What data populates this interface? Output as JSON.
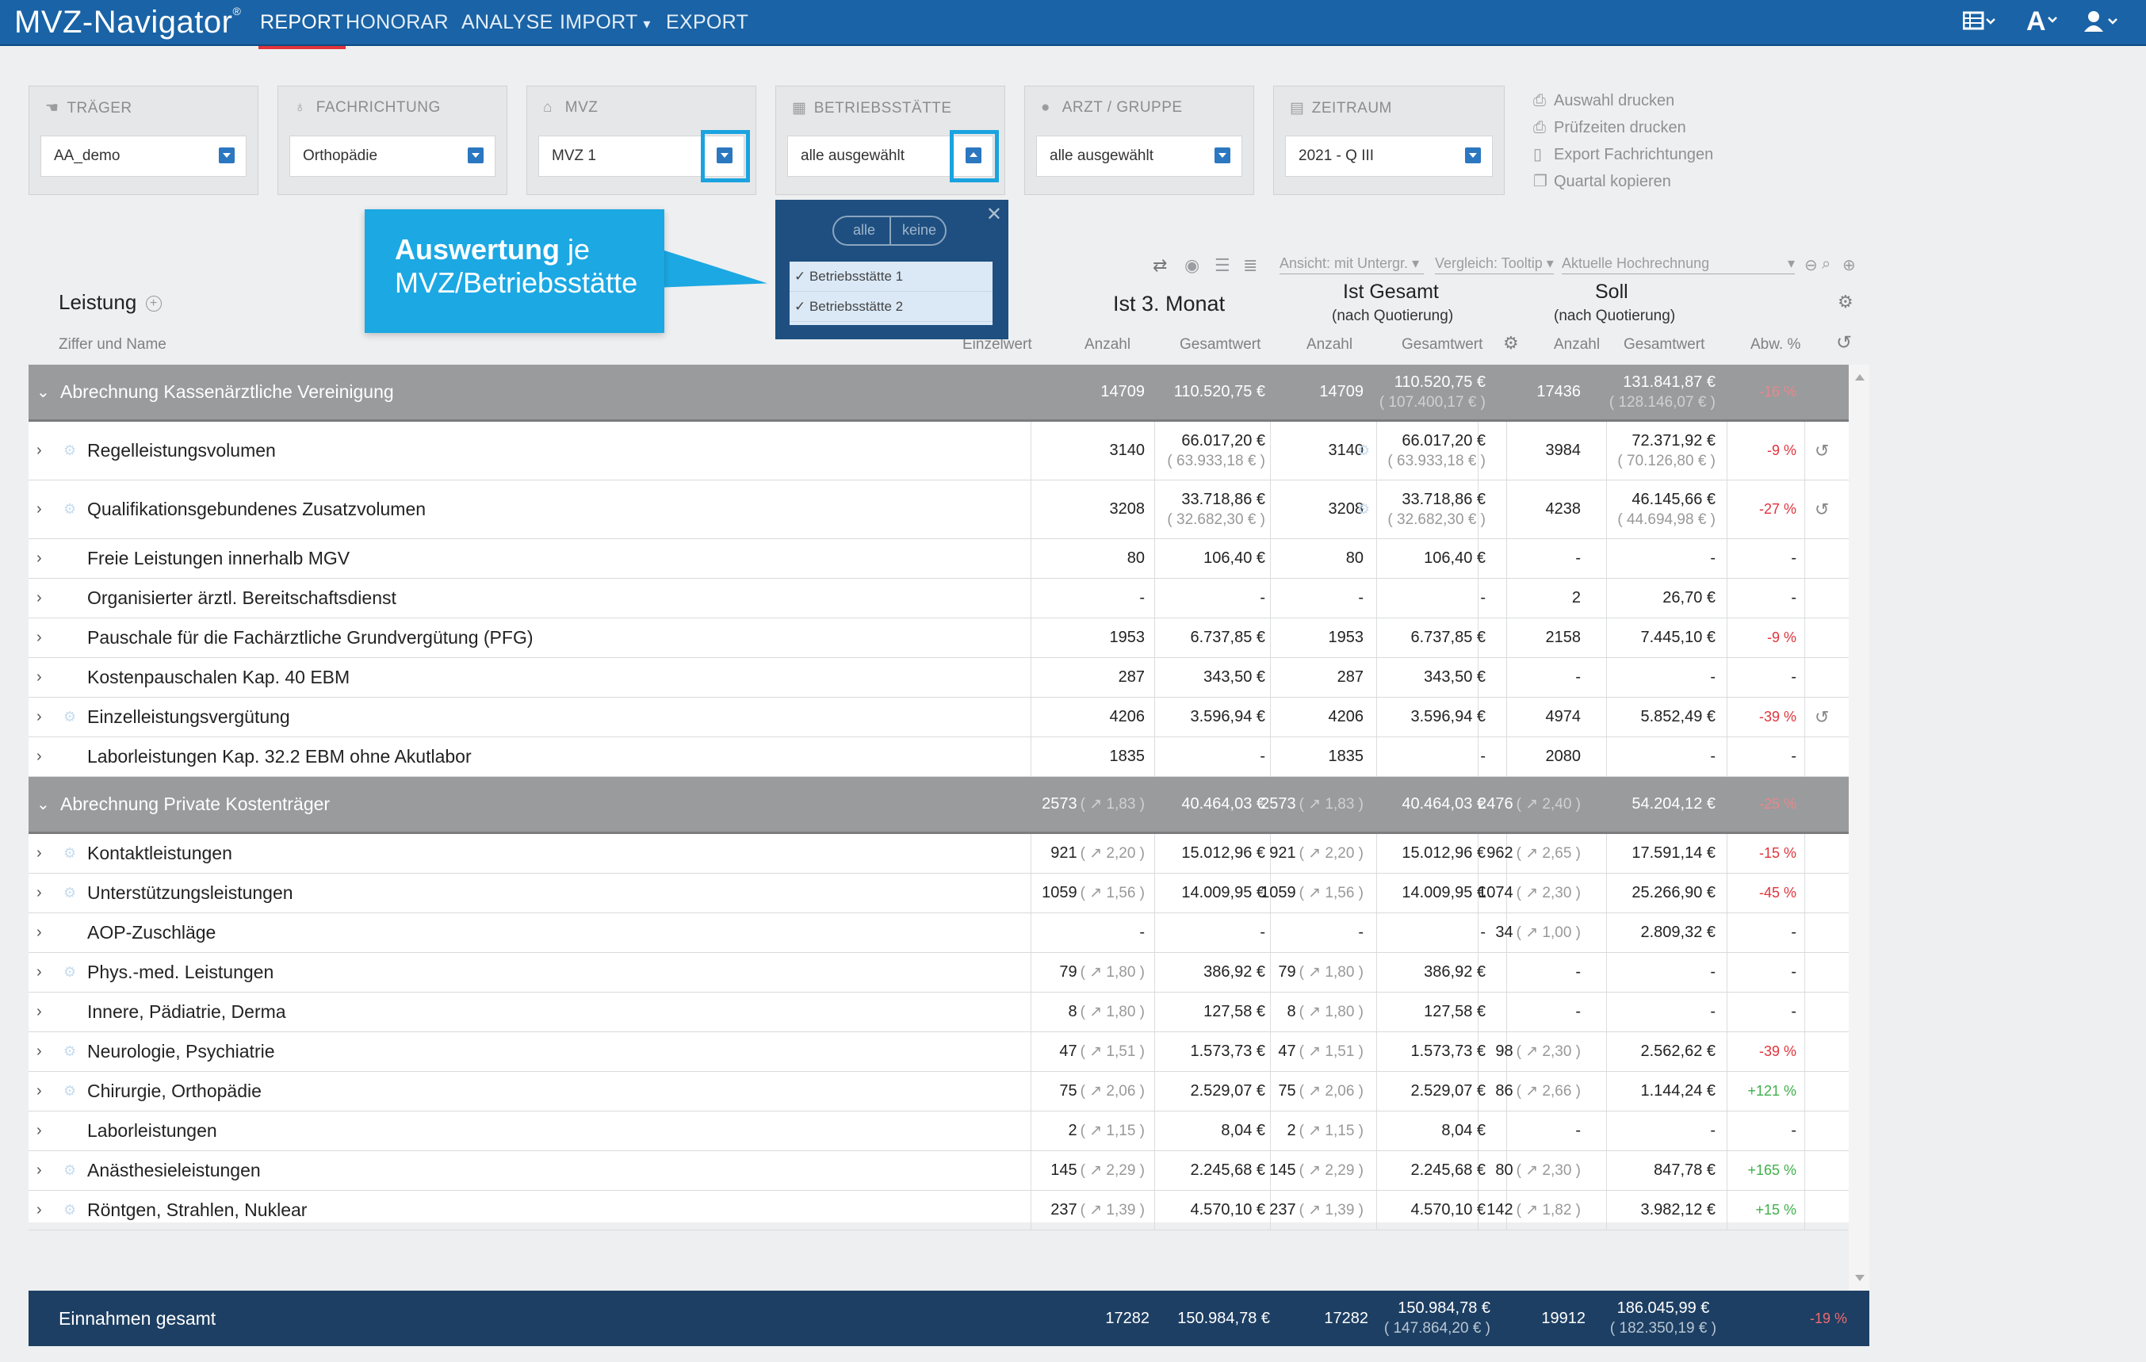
{
  "nav": {
    "logo": "MVZ-Navigator",
    "logo_mark": "®",
    "items": [
      "REPORT",
      "HONORAR",
      "ANALYSE",
      "IMPORT",
      "EXPORT"
    ],
    "import_caret": "⌄",
    "right_icons": [
      "table-icon",
      "font-size-icon",
      "user-icon"
    ]
  },
  "filters": [
    {
      "title": "TRÄGER",
      "value": "AA_demo",
      "icon": "handshake-icon"
    },
    {
      "title": "FACHRICHTUNG",
      "value": "Orthopädie",
      "icon": "stethoscope-icon"
    },
    {
      "title": "MVZ",
      "value": "MVZ 1",
      "icon": "building-icon"
    },
    {
      "title": "BETRIEBSSTÄTTE",
      "value": "alle ausgewählt",
      "icon": "office-icon"
    },
    {
      "title": "ARZT / GRUPPE",
      "value": "alle ausgewählt",
      "icon": "person-icon"
    },
    {
      "title": "ZEITRAUM",
      "value": "2021 - Q III",
      "icon": "calendar-icon"
    }
  ],
  "actions": [
    "Auswahl drucken",
    "Prüfzeiten drucken",
    "Export Fachrichtungen",
    "Quartal kopieren"
  ],
  "callout": {
    "bold": "Auswertung",
    "rest": " je",
    "line2": "MVZ/Betriebsstätte"
  },
  "dropdown": {
    "toggle_all": "alle",
    "toggle_none": "keine",
    "items": [
      "Betriebsstätte 1",
      "Betriebsstätte 2"
    ]
  },
  "toolbar": {
    "view": "Ansicht: mit Untergr.",
    "compare": "Vergleich: Tooltip",
    "projection": "Aktuelle Hochrechnung"
  },
  "header": {
    "leistung": "Leistung",
    "ziffer": "Ziffer und Name",
    "einzelwert": "Einzelwert",
    "ist3": "Ist 3. Monat",
    "istg": "Ist Gesamt",
    "istg_sub": "(nach Quotierung)",
    "soll": "Soll",
    "soll_sub": "(nach Quotierung)",
    "anzahl": "Anzahl",
    "gesamtwert": "Gesamtwert",
    "abw": "Abw. %"
  },
  "rows": [
    {
      "type": "group",
      "name": "Abrechnung Kassenärztliche Vereinigung",
      "a1": "14709",
      "g1": "110.520,75 €",
      "a2": "14709",
      "g2": "110.520,75 €",
      "g2s": "( 107.400,17 € )",
      "a3": "17436",
      "g3": "131.841,87 €",
      "g3s": "( 128.146,07 € )",
      "abw": "-16 %"
    },
    {
      "type": "item",
      "gear": true,
      "name": "Regelleistungsvolumen",
      "a1": "3140",
      "g1": "66.017,20 €",
      "g1s": "( 63.933,18 € )",
      "a2": "3140",
      "g2": "66.017,20 €",
      "g2s": "( 63.933,18 € )",
      "a3": "3984",
      "g3": "72.371,92 €",
      "g3s": "( 70.126,80 € )",
      "abw": "-9 %",
      "hist": true,
      "tall": true,
      "gear2": true
    },
    {
      "type": "item",
      "gear": true,
      "name": "Qualifikationsgebundenes Zusatzvolumen",
      "a1": "3208",
      "g1": "33.718,86 €",
      "g1s": "( 32.682,30 € )",
      "a2": "3208",
      "g2": "33.718,86 €",
      "g2s": "( 32.682,30 € )",
      "a3": "4238",
      "g3": "46.145,66 €",
      "g3s": "( 44.694,98 € )",
      "abw": "-27 %",
      "hist": true,
      "tall": true,
      "gear2": true
    },
    {
      "type": "item",
      "name": "Freie Leistungen innerhalb MGV",
      "a1": "80",
      "g1": "106,40 €",
      "a2": "80",
      "g2": "106,40 €",
      "a3": "-",
      "g3": "-",
      "abw": "-"
    },
    {
      "type": "item",
      "name": "Organisierter ärztl. Bereitschaftsdienst",
      "a1": "-",
      "g1": "-",
      "a2": "-",
      "g2": "-",
      "a3": "2",
      "g3": "26,70 €",
      "abw": "-"
    },
    {
      "type": "item",
      "name": "Pauschale für die Fachärztliche Grundvergütung (PFG)",
      "a1": "1953",
      "g1": "6.737,85 €",
      "a2": "1953",
      "g2": "6.737,85 €",
      "a3": "2158",
      "g3": "7.445,10 €",
      "abw": "-9 %"
    },
    {
      "type": "item",
      "name": "Kostenpauschalen Kap. 40 EBM",
      "a1": "287",
      "g1": "343,50 €",
      "a2": "287",
      "g2": "343,50 €",
      "a3": "-",
      "g3": "-",
      "abw": "-"
    },
    {
      "type": "item",
      "gear": true,
      "name": "Einzelleistungsvergütung",
      "a1": "4206",
      "g1": "3.596,94 €",
      "a2": "4206",
      "g2": "3.596,94 €",
      "a3": "4974",
      "g3": "5.852,49 €",
      "abw": "-39 %",
      "hist": true
    },
    {
      "type": "item",
      "name": "Laborleistungen Kap. 32.2 EBM ohne Akutlabor",
      "a1": "1835",
      "g1": "-",
      "a2": "1835",
      "g2": "-",
      "a3": "2080",
      "g3": "-",
      "abw": "-"
    },
    {
      "type": "group",
      "name": "Abrechnung Private Kostenträger",
      "a1": "2573",
      "a1s": "( ↗ 1,83 )",
      "g1": "40.464,03 €",
      "a2": "2573",
      "a2s": "( ↗ 1,83 )",
      "g2": "40.464,03 €",
      "a3": "2476",
      "a3s": "( ↗ 2,40 )",
      "g3": "54.204,12 €",
      "abw": "-25 %"
    },
    {
      "type": "item",
      "gear": true,
      "name": "Kontaktleistungen",
      "a1": "921",
      "a1s": "( ↗ 2,20 )",
      "g1": "15.012,96 €",
      "a2": "921",
      "a2s": "( ↗ 2,20 )",
      "g2": "15.012,96 €",
      "a3": "962",
      "a3s": "( ↗ 2,65 )",
      "g3": "17.591,14 €",
      "abw": "-15 %"
    },
    {
      "type": "item",
      "gear": true,
      "name": "Unterstützungsleistungen",
      "a1": "1059",
      "a1s": "( ↗ 1,56 )",
      "g1": "14.009,95 €",
      "a2": "1059",
      "a2s": "( ↗ 1,56 )",
      "g2": "14.009,95 €",
      "a3": "1074",
      "a3s": "( ↗ 2,30 )",
      "g3": "25.266,90 €",
      "abw": "-45 %"
    },
    {
      "type": "item",
      "name": "AOP-Zuschläge",
      "a1": "-",
      "g1": "-",
      "a2": "-",
      "g2": "-",
      "a3": "34",
      "a3s": "( ↗ 1,00 )",
      "g3": "2.809,32 €",
      "abw": "-"
    },
    {
      "type": "item",
      "gear": true,
      "name": "Phys.-med. Leistungen",
      "a1": "79",
      "a1s": "( ↗ 1,80 )",
      "g1": "386,92 €",
      "a2": "79",
      "a2s": "( ↗ 1,80 )",
      "g2": "386,92 €",
      "a3": "-",
      "g3": "-",
      "abw": "-"
    },
    {
      "type": "item",
      "name": "Innere, Pädiatrie, Derma",
      "a1": "8",
      "a1s": "( ↗ 1,80 )",
      "g1": "127,58 €",
      "a2": "8",
      "a2s": "( ↗ 1,80 )",
      "g2": "127,58 €",
      "a3": "-",
      "g3": "-",
      "abw": "-"
    },
    {
      "type": "item",
      "gear": true,
      "name": "Neurologie, Psychiatrie",
      "a1": "47",
      "a1s": "( ↗ 1,51 )",
      "g1": "1.573,73 €",
      "a2": "47",
      "a2s": "( ↗ 1,51 )",
      "g2": "1.573,73 €",
      "a3": "98",
      "a3s": "( ↗ 2,30 )",
      "g3": "2.562,62 €",
      "abw": "-39 %"
    },
    {
      "type": "item",
      "gear": true,
      "name": "Chirurgie, Orthopädie",
      "a1": "75",
      "a1s": "( ↗ 2,06 )",
      "g1": "2.529,07 €",
      "a2": "75",
      "a2s": "( ↗ 2,06 )",
      "g2": "2.529,07 €",
      "a3": "86",
      "a3s": "( ↗ 2,66 )",
      "g3": "1.144,24 €",
      "abw": "+121 %",
      "abwpos": true
    },
    {
      "type": "item",
      "name": "Laborleistungen",
      "a1": "2",
      "a1s": "( ↗ 1,15 )",
      "g1": "8,04 €",
      "a2": "2",
      "a2s": "( ↗ 1,15 )",
      "g2": "8,04 €",
      "a3": "-",
      "g3": "-",
      "abw": "-"
    },
    {
      "type": "item",
      "gear": true,
      "name": "Anästhesieleistungen",
      "a1": "145",
      "a1s": "( ↗ 2,29 )",
      "g1": "2.245,68 €",
      "a2": "145",
      "a2s": "( ↗ 2,29 )",
      "g2": "2.245,68 €",
      "a3": "80",
      "a3s": "( ↗ 2,30 )",
      "g3": "847,78 €",
      "abw": "+165 %",
      "abwpos": true
    },
    {
      "type": "item",
      "gear": true,
      "name": "Röntgen, Strahlen, Nuklear",
      "a1": "237",
      "a1s": "( ↗ 1,39 )",
      "g1": "4.570,10 €",
      "a2": "237",
      "a2s": "( ↗ 1,39 )",
      "g2": "4.570,10 €",
      "a3": "142",
      "a3s": "( ↗ 1,82 )",
      "g3": "3.982,12 €",
      "abw": "+15 %",
      "abwpos": true
    }
  ],
  "footer": {
    "label": "Einnahmen gesamt",
    "a1": "17282",
    "g1": "150.984,78 €",
    "a2": "17282",
    "g2": "150.984,78 €",
    "g2s": "( 147.864,20 € )",
    "a3": "19912",
    "g3": "186.045,99 €",
    "g3s": "( 182.350,19 € )",
    "abw": "-19 %"
  }
}
